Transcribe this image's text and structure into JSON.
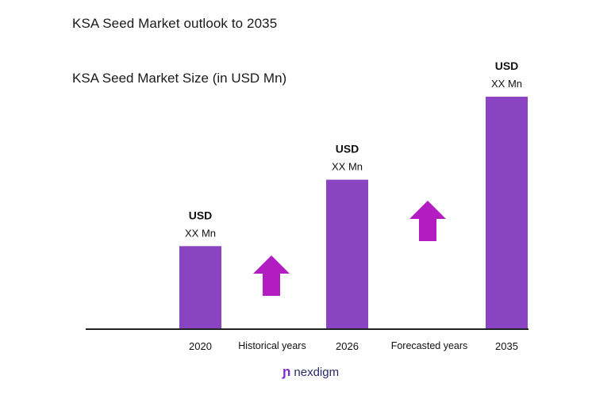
{
  "header": {
    "title": "KSA Seed Market outlook to 2035",
    "subtitle": "KSA Seed Market Size (in USD Mn)"
  },
  "colors": {
    "bar": "#8a44c2",
    "arrow": "#b21dc2",
    "axis": "#222222"
  },
  "chart_data": {
    "type": "bar",
    "categories": [
      "2020",
      "2026",
      "2035"
    ],
    "values": [
      1.0,
      1.8,
      2.8
    ],
    "ylim": [
      0,
      3.2
    ],
    "data_labels": [
      {
        "line1": "USD",
        "line2": "XX Mn"
      },
      {
        "line1": "USD",
        "line2": "XX Mn"
      },
      {
        "line1": "USD",
        "line2": "XX Mn"
      }
    ],
    "period_labels": [
      "Historical years",
      "Forecasted years"
    ],
    "grid": false,
    "legend": "none"
  },
  "brand": {
    "icon": "nexdigm-logo-icon",
    "name": "nexdigm"
  }
}
